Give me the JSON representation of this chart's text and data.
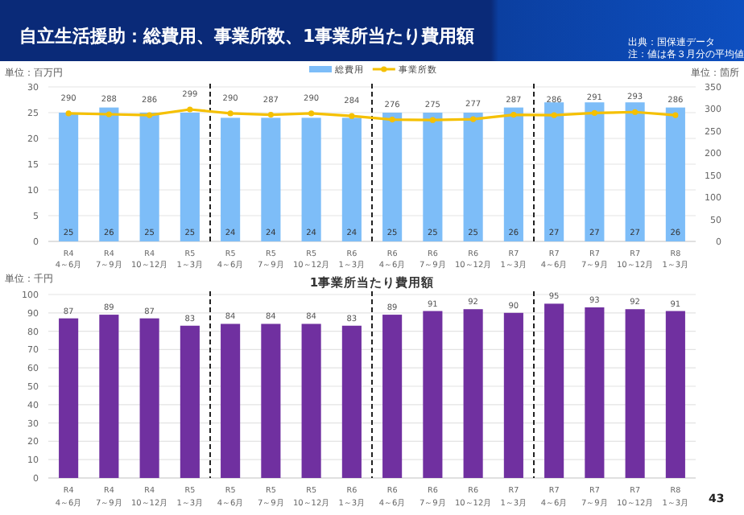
{
  "chart_data": [
    {
      "type": "bar",
      "title": "自立生活援助：総費用、事業所数、1事業所当たり費用額",
      "annotations": [
        "出典：国保連データ",
        "注：値は各３月分の平均値",
        "単位：百万円",
        "単位：箇所"
      ],
      "categories": [
        "R4\n4～6月",
        "R4\n7～9月",
        "R4\n10～12月",
        "R5\n1～3月",
        "R5\n4～6月",
        "R5\n7～9月",
        "R5\n10～12月",
        "R6\n1～3月",
        "R6\n4～6月",
        "R6\n7～9月",
        "R6\n10～12月",
        "R7\n1～3月",
        "R7\n4～6月",
        "R7\n7～9月",
        "R7\n10～12月",
        "R8\n1～3月"
      ],
      "series": [
        {
          "name": "総費用",
          "type": "bar",
          "color": "#7dbdf8",
          "values": [
            25,
            26,
            25,
            25,
            24,
            24,
            24,
            24,
            25,
            25,
            25,
            26,
            27,
            27,
            27,
            26
          ]
        },
        {
          "name": "事業所数",
          "type": "line",
          "axis": "y2",
          "color": "#f5c000",
          "values": [
            290,
            288,
            286,
            299,
            290,
            287,
            290,
            284,
            276,
            275,
            277,
            287,
            286,
            291,
            293,
            286
          ]
        }
      ],
      "ylim": [
        0,
        30
      ],
      "yticks": [
        0,
        5,
        10,
        15,
        20,
        25,
        30
      ],
      "y2lim": [
        0,
        350
      ],
      "y2ticks": [
        0,
        50,
        100,
        150,
        200,
        250,
        300,
        350
      ],
      "grid": "y",
      "legend": "top",
      "marker": "circle",
      "data_labels": true
    },
    {
      "type": "bar",
      "title": "1事業所当たり費用額",
      "annotations": [
        "単位：千円",
        "43"
      ],
      "categories": [
        "R4\n4～6月",
        "R4\n7～9月",
        "R4\n10～12月",
        "R5\n1～3月",
        "R5\n4～6月",
        "R5\n7～9月",
        "R5\n10～12月",
        "R6\n1～3月",
        "R6\n4～6月",
        "R6\n7～9月",
        "R6\n10～12月",
        "R7\n1～3月",
        "R7\n4～6月",
        "R7\n7～9月",
        "R7\n10～12月",
        "R8\n1～3月"
      ],
      "series": [
        {
          "color": "#7030a0",
          "values": [
            87,
            89,
            87,
            83,
            84,
            84,
            84,
            83,
            89,
            91,
            92,
            90,
            95,
            93,
            92,
            91
          ]
        }
      ],
      "ylim": [
        0,
        100
      ],
      "yticks": [
        0,
        10,
        20,
        30,
        40,
        50,
        60,
        70,
        80,
        90,
        100
      ],
      "grid": "y",
      "data_labels": true
    }
  ]
}
